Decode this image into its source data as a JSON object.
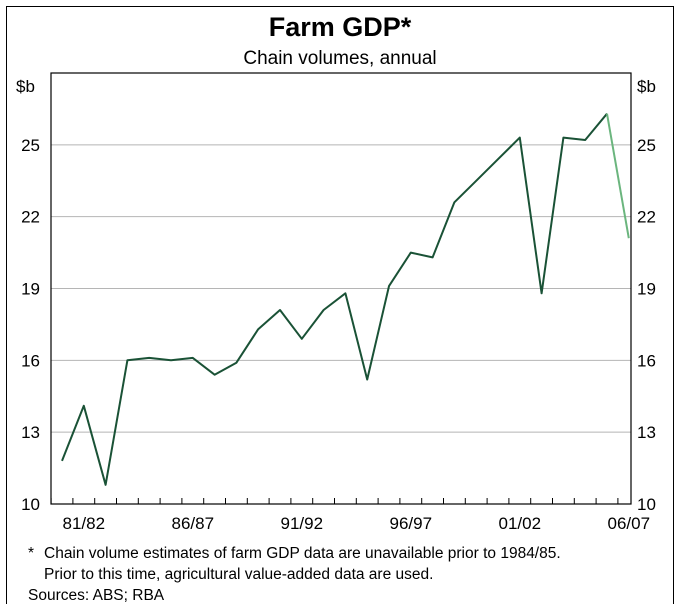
{
  "chart_data": {
    "type": "line",
    "title": "Farm GDP*",
    "subtitle": "Chain volumes, annual",
    "unit_left": "$b",
    "unit_right": "$b",
    "ylim": [
      10,
      28
    ],
    "yticks": [
      10,
      13,
      16,
      19,
      22,
      25
    ],
    "xticks": [
      "81/82",
      "86/87",
      "91/92",
      "96/97",
      "01/02",
      "06/07"
    ],
    "grid": true,
    "x": [
      "80/81",
      "81/82",
      "82/83",
      "83/84",
      "84/85",
      "85/86",
      "86/87",
      "87/88",
      "88/89",
      "89/90",
      "90/91",
      "91/92",
      "92/93",
      "93/94",
      "94/95",
      "95/96",
      "96/97",
      "97/98",
      "98/99",
      "99/00",
      "00/01",
      "01/02",
      "02/03",
      "03/04",
      "04/05",
      "05/06",
      "06/07"
    ],
    "series": [
      {
        "color": "#1a5236",
        "values": [
          11.8,
          14.1,
          10.8,
          16.0,
          16.1,
          16.0,
          16.1,
          15.4,
          15.9,
          17.3,
          18.1,
          16.9,
          18.1,
          18.8,
          15.2,
          19.1,
          20.5,
          20.3,
          22.6,
          23.5,
          24.4,
          25.3,
          18.8,
          25.3,
          25.2,
          26.3,
          null
        ]
      },
      {
        "color": "#6bb57e",
        "values": [
          null,
          null,
          null,
          null,
          null,
          null,
          null,
          null,
          null,
          null,
          null,
          null,
          null,
          null,
          null,
          null,
          null,
          null,
          null,
          null,
          null,
          null,
          null,
          null,
          null,
          26.3,
          21.1
        ]
      }
    ]
  },
  "footnote": {
    "marker": "*",
    "lines": [
      "Chain volume estimates of farm GDP data are unavailable prior to 1984/85.",
      "Prior to this time, agricultural value-added data are used."
    ]
  },
  "sources": "Sources: ABS; RBA"
}
